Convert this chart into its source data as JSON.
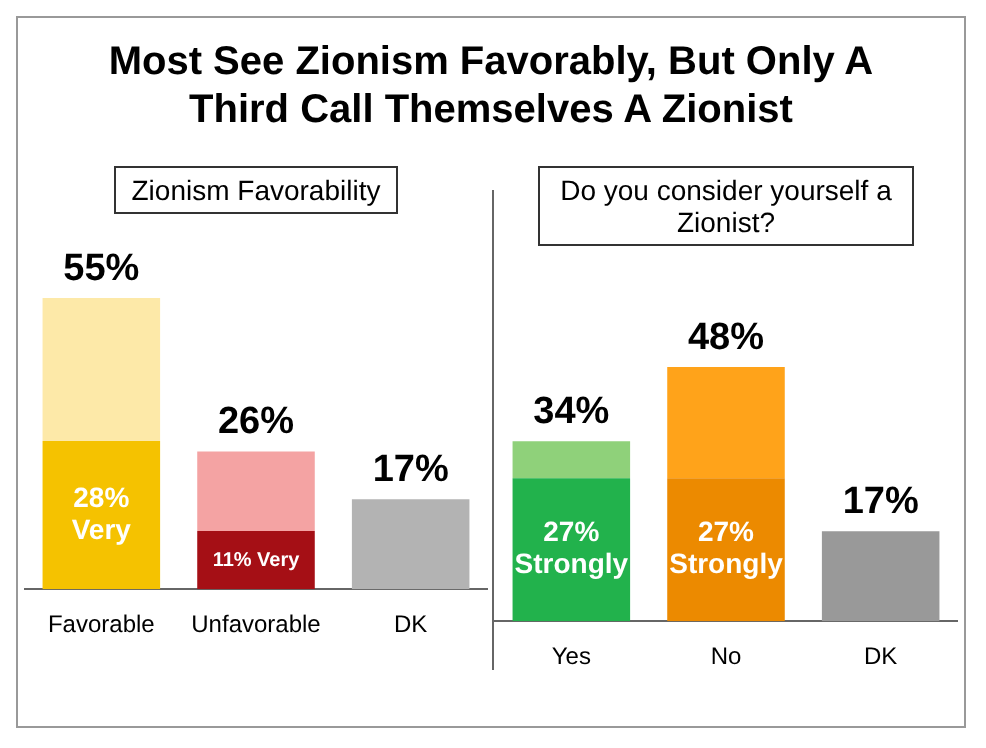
{
  "chart_data": [
    {
      "type": "bar",
      "title": "Most See Zionism Favorably, But Only A Third Call Themselves A Zionist",
      "subtitle": "Zionism Favorability",
      "categories": [
        "Favorable",
        "Unfavorable",
        "DK"
      ],
      "stacked": true,
      "grid": false,
      "legend": false,
      "tick_labels": "x",
      "totals": [
        "55%",
        "26%",
        "17%"
      ],
      "series": [
        {
          "colors": [
            "#f5c200",
            "#a50f15",
            "#b3b3b3"
          ],
          "values": [
            28,
            11,
            17
          ],
          "value_labels": [
            "28% Very",
            "11% Very",
            null
          ]
        },
        {
          "colors": [
            "#fde9a8",
            "#f4a3a3",
            "#b3b3b3"
          ],
          "values": [
            27,
            15,
            null
          ]
        }
      ]
    },
    {
      "type": "bar",
      "subtitle": "Do you consider yourself a Zionist?",
      "categories": [
        "Yes",
        "No",
        "DK"
      ],
      "stacked": true,
      "grid": false,
      "legend": false,
      "tick_labels": "x",
      "totals": [
        "34%",
        "48%",
        "17%"
      ],
      "series": [
        {
          "colors": [
            "#22b24c",
            "#ec8a00",
            "#999999"
          ],
          "values": [
            27,
            27,
            17
          ],
          "value_labels": [
            "27% Strongly",
            "27% Strongly",
            null
          ]
        },
        {
          "colors": [
            "#8fd17a",
            "#ffa31a",
            "#999999"
          ],
          "values": [
            7,
            21,
            null
          ]
        }
      ]
    }
  ]
}
